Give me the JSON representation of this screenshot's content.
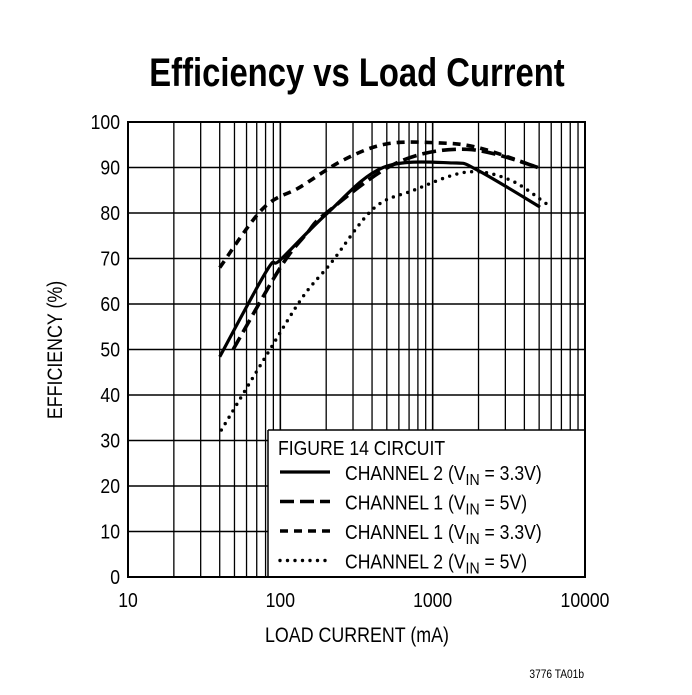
{
  "chart_data": {
    "type": "line",
    "title": "Efficiency vs Load Current",
    "xlabel": "LOAD CURRENT (mA)",
    "ylabel": "EFFICIENCY (%)",
    "xscale": "log",
    "xlim": [
      10,
      10000
    ],
    "ylim": [
      0,
      100
    ],
    "xticks": [
      "10",
      "100",
      "1000",
      "10000"
    ],
    "yticks": [
      "0",
      "10",
      "20",
      "30",
      "40",
      "50",
      "60",
      "70",
      "80",
      "90",
      "100"
    ],
    "grid": true,
    "legend_placement": "bottom-right",
    "legend_title": "FIGURE 14 CIRCUIT",
    "series": [
      {
        "name": "CHANNEL 2 (VIN = 3.3V)",
        "label_pre": "CHANNEL 2 (V",
        "label_sub": "IN",
        "label_post": " = 3.3V)",
        "style": "solid",
        "x": [
          40,
          82,
          100,
          204,
          473,
          1350,
          1950,
          5070
        ],
        "y": [
          48.4,
          67.5,
          69.7,
          80,
          90,
          91,
          89.5,
          81.3
        ]
      },
      {
        "name": "CHANNEL 1 (VIN = 5V)",
        "label_pre": "CHANNEL 1 (V",
        "label_sub": "IN",
        "label_post": " = 5V)",
        "style": "long-dash",
        "x": [
          49,
          100,
          150,
          200,
          580,
          1680,
          5000
        ],
        "y": [
          50,
          68,
          75.6,
          80,
          91,
          94,
          90
        ]
      },
      {
        "name": "CHANNEL 1 (VIN = 3.3V)",
        "label_pre": "CHANNEL 1 (V",
        "label_sub": "IN",
        "label_post": " = 3.3V)",
        "style": "short-dash",
        "x": [
          40,
          77,
          135,
          258,
          500,
          1110,
          2030,
          4900
        ],
        "y": [
          68,
          81,
          85.7,
          91.6,
          95.2,
          95.4,
          94.3,
          90
        ]
      },
      {
        "name": "CHANNEL 2 (VIN = 5V)",
        "label_pre": "CHANNEL 2 (V",
        "label_sub": "IN",
        "label_post": " = 5V)",
        "style": "dotted",
        "x": [
          41,
          82,
          140,
          215,
          410,
          750,
          1680,
          3200,
          5600
        ],
        "y": [
          32.3,
          49,
          61.5,
          69,
          81,
          85,
          89,
          87.3,
          82
        ]
      }
    ],
    "footnote": "3776 TA01b"
  }
}
